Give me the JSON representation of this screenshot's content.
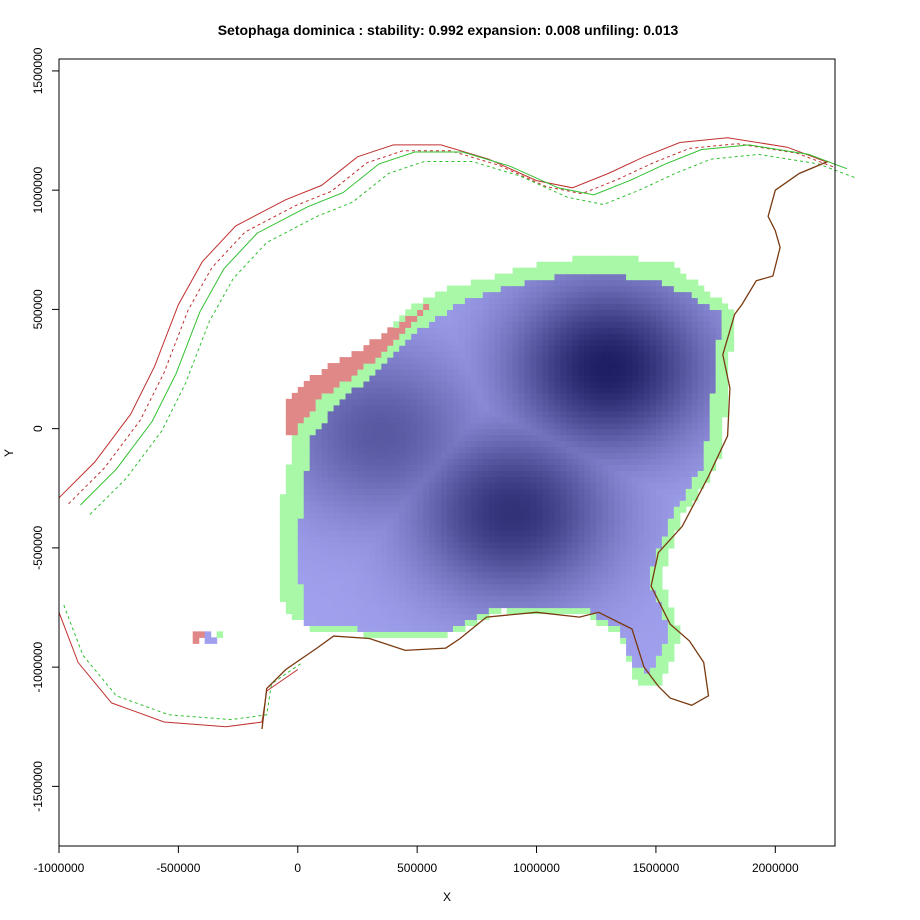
{
  "chart_data": {
    "type": "heatmap",
    "title": "Setophaga dominica : stability: 0.992 expansion: 0.008 unfiling: 0.013",
    "xlabel": "X",
    "ylabel": "Y",
    "xlim": [
      -1000000,
      2250000
    ],
    "ylim": [
      -1750000,
      1550000
    ],
    "x_ticks": [
      -1000000,
      -500000,
      0,
      500000,
      1000000,
      1500000,
      2000000
    ],
    "x_tick_labels": [
      "-1000000",
      "-500000",
      "0",
      "500000",
      "1000000",
      "1500000",
      "2000000"
    ],
    "y_ticks": [
      -1500000,
      -1000000,
      -500000,
      0,
      500000,
      1000000,
      1500000
    ],
    "y_tick_labels": [
      "-1500000",
      "-1000000",
      "-500000",
      "0",
      "500000",
      "1000000",
      "1500000"
    ],
    "stats": {
      "stability": 0.992,
      "expansion": 0.008,
      "unfilling": 0.013
    },
    "colors": {
      "stability_low": "#a0a0ee",
      "stability_high": "#1e1e64",
      "expansion": "#a8f8a8",
      "unfilling": "#e08888",
      "contour_green": "#30c030",
      "contour_red": "#c03030",
      "coastline": "#7a3a10"
    },
    "density_peaks": [
      {
        "x": 1300000,
        "y": 260000,
        "weight": 1.0
      },
      {
        "x": 900000,
        "y": -350000,
        "weight": 0.85
      },
      {
        "x": 350000,
        "y": -20000,
        "weight": 0.55
      }
    ]
  }
}
